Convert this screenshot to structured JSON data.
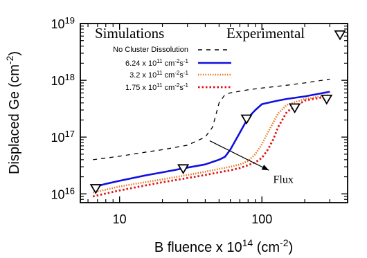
{
  "chart_data": {
    "type": "line",
    "xlabel": {
      "base": "B fluence x 10",
      "exp": "14",
      "unit": " (cm",
      "unit_exp": "-2",
      "close": ")"
    },
    "ylabel": {
      "base": "Displaced Ge (cm",
      "exp": "-2",
      "close": ")"
    },
    "x_scale": "log",
    "y_scale": "log",
    "xlim": [
      5.3,
      400
    ],
    "ylim": [
      7000000000000000,
      10000000000000000000
    ],
    "x_ticks": [
      {
        "value": 10,
        "label": "10"
      },
      {
        "value": 100,
        "label": "100"
      }
    ],
    "y_ticks": [
      {
        "value": 10000000000000000,
        "base": "10",
        "exp": "16"
      },
      {
        "value": 100000000000000000,
        "base": "10",
        "exp": "17"
      },
      {
        "value": 1000000000000000000,
        "base": "10",
        "exp": "18"
      },
      {
        "value": 10000000000000000000,
        "base": "10",
        "exp": "19"
      }
    ],
    "grid": false,
    "legend_headers": {
      "left": "Simulations",
      "right": "Experimental"
    },
    "series": [
      {
        "name": "No Cluster Dissolution",
        "style": "dashed-black",
        "color": "#000000",
        "x": [
          6.5,
          10,
          15,
          20,
          30,
          40,
          45,
          50,
          55,
          60,
          80,
          100,
          150,
          200,
          300
        ],
        "y": [
          4e+16,
          4.6e+16,
          5.4e+16,
          6e+16,
          7.2e+16,
          1e+17,
          1.5e+17,
          4e+17,
          5.6e+17,
          6e+17,
          6.8e+17,
          7.3e+17,
          8.2e+17,
          9e+17,
          1.05e+18
        ]
      },
      {
        "name": "6.24 x 10^11 cm^-2 s^-1",
        "label_parts": {
          "a": "6.24 x 10",
          "a_exp": "11",
          "b": " cm",
          "b_exp": "-2",
          "c": "s",
          "c_exp": "-1"
        },
        "style": "solid-blue",
        "color": "#1010e0",
        "x": [
          6.5,
          8,
          10,
          15,
          20,
          30,
          40,
          50,
          55,
          60,
          70,
          80,
          90,
          100,
          130,
          150,
          200,
          300
        ],
        "y": [
          1.3e+16,
          1.5e+16,
          1.7e+16,
          2.1e+16,
          2.4e+16,
          2.9e+16,
          3.3e+16,
          4e+16,
          4.5e+16,
          6e+16,
          1.2e+17,
          2.2e+17,
          3e+17,
          3.8e+17,
          4.4e+17,
          4.7e+17,
          5.2e+17,
          6.3e+17
        ]
      },
      {
        "name": "3.2 x 10^11 cm^-2 s^-1",
        "label_parts": {
          "a": "3.2 x 10",
          "a_exp": "11",
          "b": " cm",
          "b_exp": "-2",
          "c": "s",
          "c_exp": "-1"
        },
        "style": "dotted-orange",
        "color": "#e87820",
        "x": [
          6.5,
          10,
          15,
          20,
          30,
          40,
          50,
          60,
          70,
          80,
          90,
          100,
          110,
          130,
          150,
          200,
          300
        ],
        "y": [
          1.05e+16,
          1.35e+16,
          1.6e+16,
          1.8e+16,
          2.15e+16,
          2.45e+16,
          2.75e+16,
          3e+16,
          3.3e+16,
          3.8e+16,
          5e+16,
          7.5e+16,
          1.2e+17,
          2.6e+17,
          3.7e+17,
          4.7e+17,
          5.5e+17
        ]
      },
      {
        "name": "1.75 x 10^11 cm^-2 s^-1",
        "label_parts": {
          "a": "1.75 x 10",
          "a_exp": "11",
          "b": " cm",
          "b_exp": "-2",
          "c": "s",
          "c_exp": "-1"
        },
        "style": "dotted-red",
        "color": "#e01010",
        "x": [
          6.5,
          10,
          15,
          20,
          30,
          40,
          50,
          60,
          70,
          80,
          90,
          100,
          110,
          120,
          130,
          150,
          200,
          300
        ],
        "y": [
          9000000000000000.0,
          1.15e+16,
          1.4e+16,
          1.6e+16,
          1.9e+16,
          2.15e+16,
          2.4e+16,
          2.6e+16,
          2.85e+16,
          3.2e+16,
          3.6e+16,
          4.3e+16,
          6e+16,
          9e+16,
          1.5e+17,
          2.8e+17,
          4.4e+17,
          5.3e+17
        ]
      }
    ],
    "experimental": {
      "name": "Experimental",
      "marker": "open-triangle-down",
      "x": [
        6.8,
        28,
        78,
        170,
        285
      ],
      "y": [
        1.25e+16,
        2.8e+16,
        2.1e+17,
        3.3e+17,
        4.7e+17
      ]
    },
    "annotation": {
      "text": "Flux",
      "arrow_from": {
        "x": 43,
        "y": 8.6e+16
      },
      "arrow_to": {
        "x": 112,
        "y": 2.6e+16
      },
      "text_at": {
        "x": 120,
        "y": 1.55e+16
      }
    }
  }
}
